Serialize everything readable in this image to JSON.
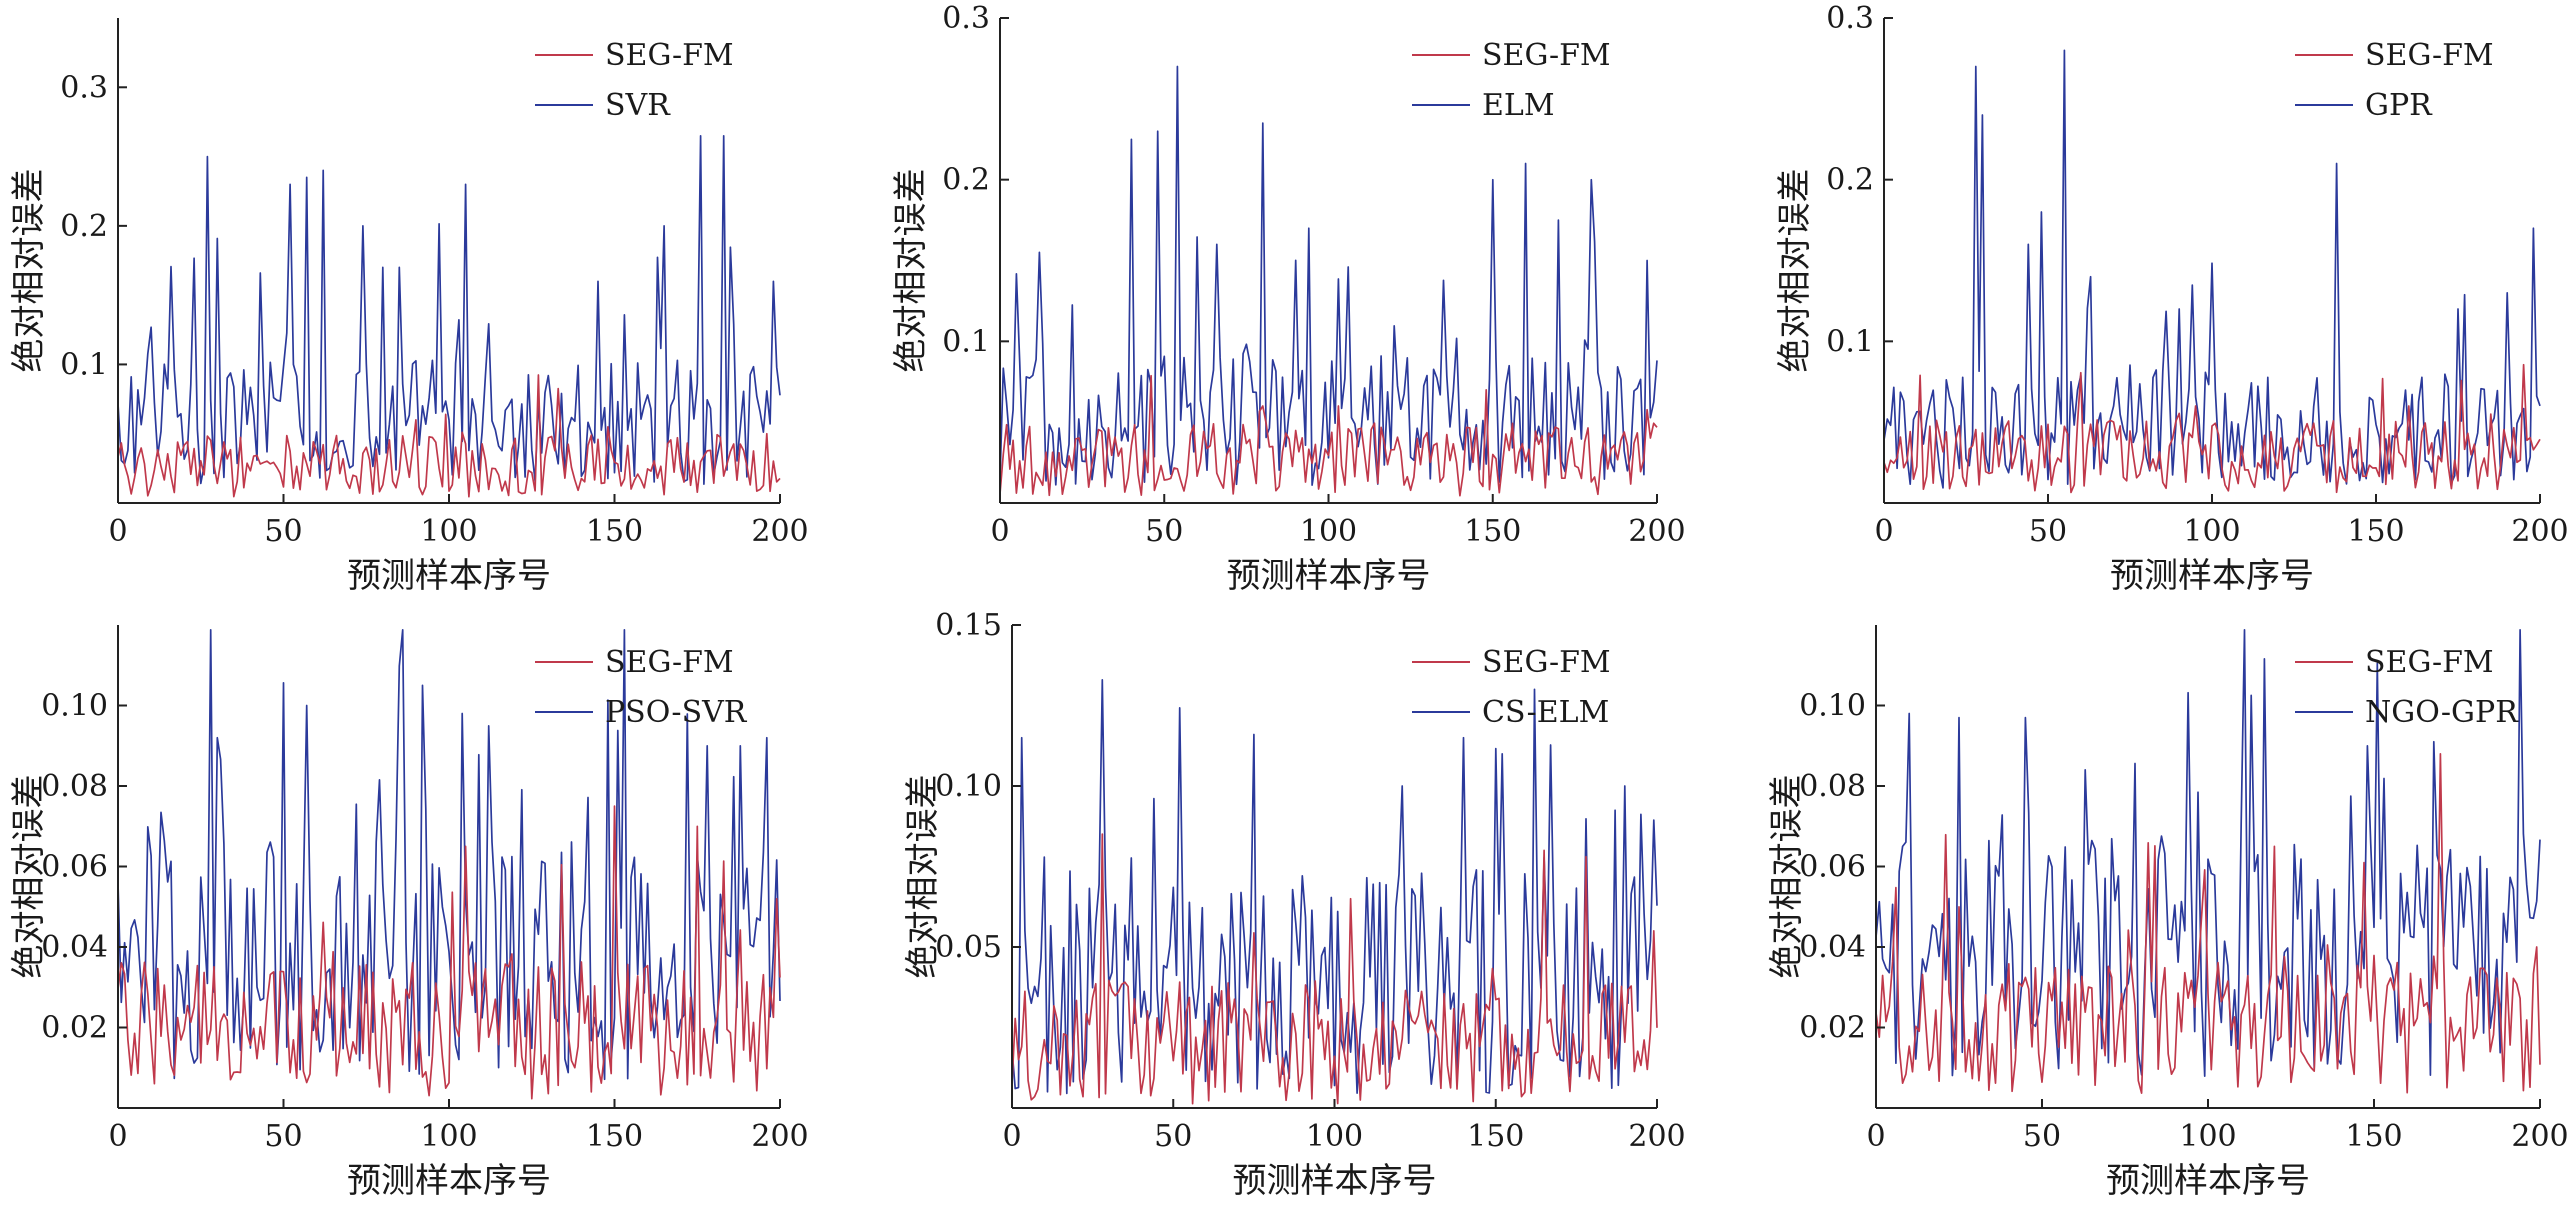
{
  "colors": {
    "seg_fm": "#c0394b",
    "comparison": "#2b3a9b",
    "axis": "#222222"
  },
  "chart_data": [
    {
      "type": "line",
      "xlabel": "预测样本序号",
      "ylabel": "绝对相对误差",
      "xlim": [
        0,
        200
      ],
      "ylim": [
        0,
        0.35
      ],
      "xticks": [
        "0",
        "50",
        "100",
        "150",
        "200"
      ],
      "yticks": [
        {
          "value": 0.1,
          "label": "0.1"
        },
        {
          "value": 0.2,
          "label": "0.2"
        },
        {
          "value": 0.3,
          "label": "0.3"
        }
      ],
      "legend_position": "top-right",
      "grid": false,
      "series": [
        {
          "name": "SEG-FM",
          "color": "#c0394b",
          "base": 0.018,
          "amp": 0.045,
          "peak_prob": 0.03,
          "peaks": [
            [
              90,
              0.06
            ],
            [
              148,
              0.055
            ],
            [
              196,
              0.05
            ]
          ]
        },
        {
          "name": "SVR",
          "color": "#2b3a9b",
          "base": 0.04,
          "amp": 0.09,
          "peak_prob": 0.12,
          "peaks": [
            [
              27,
              0.25
            ],
            [
              52,
              0.23
            ],
            [
              57,
              0.235
            ],
            [
              62,
              0.24
            ],
            [
              74,
              0.2
            ],
            [
              80,
              0.17
            ],
            [
              85,
              0.17
            ],
            [
              105,
              0.23
            ],
            [
              145,
              0.16
            ],
            [
              165,
              0.2
            ],
            [
              176,
              0.265
            ],
            [
              183,
              0.265
            ],
            [
              198,
              0.16
            ]
          ]
        }
      ]
    },
    {
      "type": "line",
      "xlabel": "预测样本序号",
      "ylabel": "绝对相对误差",
      "xlim": [
        0,
        200
      ],
      "ylim": [
        0,
        0.3
      ],
      "xticks": [
        "0",
        "50",
        "100",
        "150",
        "200"
      ],
      "yticks": [
        {
          "value": 0.1,
          "label": "0.1"
        },
        {
          "value": 0.2,
          "label": "0.2"
        },
        {
          "value": 0.3,
          "label": "0.3"
        }
      ],
      "legend_position": "top-right",
      "grid": false,
      "series": [
        {
          "name": "SEG-FM",
          "color": "#c0394b",
          "base": 0.018,
          "amp": 0.045,
          "peak_prob": 0.03,
          "peaks": [
            [
              80,
              0.06
            ],
            [
              103,
              0.06
            ],
            [
              148,
              0.07
            ]
          ]
        },
        {
          "name": "ELM",
          "color": "#2b3a9b",
          "base": 0.035,
          "amp": 0.08,
          "peak_prob": 0.12,
          "peaks": [
            [
              12,
              0.155
            ],
            [
              40,
              0.225
            ],
            [
              48,
              0.23
            ],
            [
              54,
              0.27
            ],
            [
              66,
              0.16
            ],
            [
              80,
              0.235
            ],
            [
              94,
              0.17
            ],
            [
              150,
              0.2
            ],
            [
              160,
              0.21
            ],
            [
              170,
              0.175
            ],
            [
              180,
              0.2
            ],
            [
              197,
              0.15
            ]
          ]
        }
      ]
    },
    {
      "type": "line",
      "xlabel": "预测样本序号",
      "ylabel": "绝对相对误差",
      "xlim": [
        0,
        200
      ],
      "ylim": [
        0,
        0.3
      ],
      "xticks": [
        "0",
        "50",
        "100",
        "150",
        "200"
      ],
      "yticks": [
        {
          "value": 0.1,
          "label": "0.1"
        },
        {
          "value": 0.2,
          "label": "0.2"
        },
        {
          "value": 0.3,
          "label": "0.3"
        }
      ],
      "legend_position": "top-right",
      "grid": false,
      "series": [
        {
          "name": "SEG-FM",
          "color": "#c0394b",
          "base": 0.02,
          "amp": 0.045,
          "peak_prob": 0.03,
          "peaks": [
            [
              95,
              0.06
            ],
            [
              160,
              0.06
            ],
            [
              185,
              0.055
            ]
          ]
        },
        {
          "name": "GPR",
          "color": "#2b3a9b",
          "base": 0.03,
          "amp": 0.07,
          "peak_prob": 0.1,
          "peaks": [
            [
              28,
              0.27
            ],
            [
              30,
              0.24
            ],
            [
              44,
              0.16
            ],
            [
              48,
              0.18
            ],
            [
              55,
              0.28
            ],
            [
              63,
              0.14
            ],
            [
              90,
              0.12
            ],
            [
              138,
              0.21
            ],
            [
              175,
              0.12
            ],
            [
              190,
              0.13
            ],
            [
              198,
              0.17
            ]
          ]
        }
      ]
    },
    {
      "type": "line",
      "xlabel": "预测样本序号",
      "ylabel": "绝对相对误差",
      "xlim": [
        0,
        200
      ],
      "ylim": [
        0,
        0.12
      ],
      "xticks": [
        "0",
        "50",
        "100",
        "150",
        "200"
      ],
      "yticks": [
        {
          "value": 0.02,
          "label": "0.02"
        },
        {
          "value": 0.04,
          "label": "0.04"
        },
        {
          "value": 0.06,
          "label": "0.06"
        },
        {
          "value": 0.08,
          "label": "0.08"
        },
        {
          "value": 0.1,
          "label": "0.10"
        }
      ],
      "legend_position": "top-right",
      "grid": false,
      "series": [
        {
          "name": "SEG-FM",
          "color": "#c0394b",
          "base": 0.012,
          "amp": 0.035,
          "peak_prob": 0.06,
          "peaks": [
            [
              105,
              0.065
            ],
            [
              150,
              0.075
            ],
            [
              175,
              0.07
            ],
            [
              199,
              0.052
            ]
          ]
        },
        {
          "name": "PSO-SVR",
          "color": "#2b3a9b",
          "base": 0.025,
          "amp": 0.06,
          "peak_prob": 0.15,
          "peaks": [
            [
              30,
              0.092
            ],
            [
              92,
              0.105
            ],
            [
              104,
              0.098
            ],
            [
              178,
              0.09
            ],
            [
              188,
              0.09
            ],
            [
              196,
              0.092
            ]
          ]
        }
      ]
    },
    {
      "type": "line",
      "xlabel": "预测样本序号",
      "ylabel": "绝对相对误差",
      "xlim": [
        0,
        200
      ],
      "ylim": [
        0,
        0.15
      ],
      "xticks": [
        "0",
        "50",
        "100",
        "150",
        "200"
      ],
      "yticks": [
        {
          "value": 0.05,
          "label": "0.05"
        },
        {
          "value": 0.1,
          "label": "0.10"
        },
        {
          "value": 0.15,
          "label": "0.15"
        }
      ],
      "legend_position": "top-right",
      "grid": false,
      "series": [
        {
          "name": "SEG-FM",
          "color": "#c0394b",
          "base": 0.012,
          "amp": 0.04,
          "peak_prob": 0.05,
          "peaks": [
            [
              105,
              0.065
            ],
            [
              165,
              0.08
            ],
            [
              199,
              0.055
            ]
          ]
        },
        {
          "name": "CS-ELM",
          "color": "#2b3a9b",
          "base": 0.025,
          "amp": 0.07,
          "peak_prob": 0.15,
          "peaks": [
            [
              3,
              0.115
            ],
            [
              75,
              0.116
            ],
            [
              121,
              0.1
            ],
            [
              140,
              0.115
            ],
            [
              152,
              0.11
            ],
            [
              190,
              0.1
            ]
          ]
        }
      ]
    },
    {
      "type": "line",
      "xlabel": "预测样本序号",
      "ylabel": "绝对相对误差",
      "xlim": [
        0,
        200
      ],
      "ylim": [
        0,
        0.12
      ],
      "xticks": [
        "0",
        "50",
        "100",
        "150",
        "200"
      ],
      "yticks": [
        {
          "value": 0.02,
          "label": "0.02"
        },
        {
          "value": 0.04,
          "label": "0.04"
        },
        {
          "value": 0.06,
          "label": "0.06"
        },
        {
          "value": 0.08,
          "label": "0.08"
        },
        {
          "value": 0.1,
          "label": "0.10"
        }
      ],
      "legend_position": "top-right",
      "grid": false,
      "series": [
        {
          "name": "SEG-FM",
          "color": "#c0394b",
          "base": 0.014,
          "amp": 0.035,
          "peak_prob": 0.06,
          "peaks": [
            [
              25,
              0.05
            ],
            [
              120,
              0.065
            ],
            [
              170,
              0.088
            ],
            [
              199,
              0.04
            ]
          ]
        },
        {
          "name": "NGO-GPR",
          "color": "#2b3a9b",
          "base": 0.025,
          "amp": 0.06,
          "peak_prob": 0.15,
          "peaks": [
            [
              10,
              0.098
            ],
            [
              25,
              0.097
            ],
            [
              45,
              0.097
            ],
            [
              148,
              0.09
            ],
            [
              168,
              0.091
            ]
          ]
        }
      ]
    }
  ]
}
